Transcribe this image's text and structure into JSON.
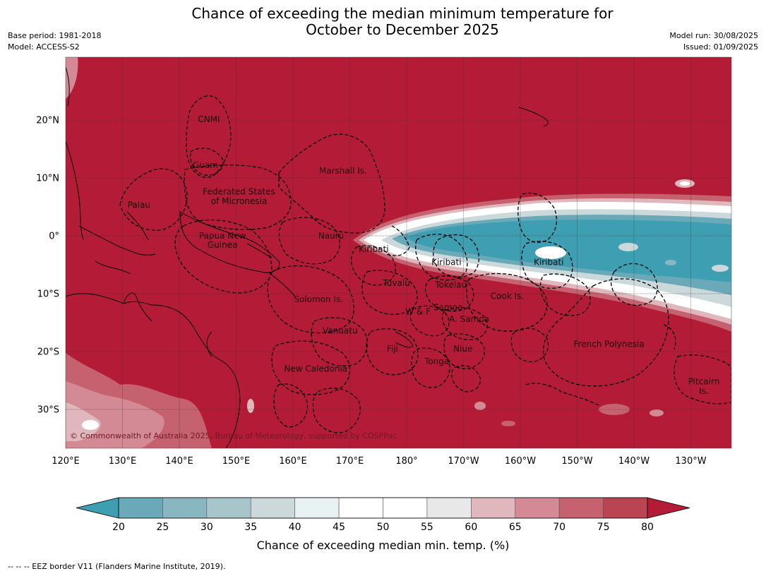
{
  "title_line1": "Chance of exceeding the median minimum temperature for",
  "title_line2": "October to December 2025",
  "meta_left": [
    "Base period: 1981-2018",
    "Model: ACCESS-S2"
  ],
  "meta_right": [
    "Model run: 30/08/2025",
    "Issued: 01/09/2025"
  ],
  "lon_ticks": [
    "120°E",
    "130°E",
    "140°E",
    "150°E",
    "160°E",
    "170°E",
    "180°",
    "170°W",
    "160°W",
    "150°W",
    "140°W",
    "130°W"
  ],
  "lat_ticks": [
    "20°N",
    "10°N",
    "0°",
    "10°S",
    "20°S",
    "30°S"
  ],
  "labels": [
    {
      "t": "CNMI",
      "lon": 145.2,
      "lat": 20.1
    },
    {
      "t": "Guam",
      "lon": 144.6,
      "lat": 12.2
    },
    {
      "t": "Marshall Is.",
      "lon": 168.8,
      "lat": 11.2
    },
    {
      "t": "Federated States",
      "lon": 150.5,
      "lat": 7.6
    },
    {
      "t": "of Micronesia",
      "lon": 150.5,
      "lat": 6.0
    },
    {
      "t": "Palau",
      "lon": 132.9,
      "lat": 5.3
    },
    {
      "t": "Papua New",
      "lon": 147.6,
      "lat": 0.0
    },
    {
      "t": "Guinea",
      "lon": 147.6,
      "lat": -1.6
    },
    {
      "t": "Nauru",
      "lon": 166.7,
      "lat": 0.0
    },
    {
      "t": "Kiribati",
      "lon": 174.2,
      "lat": -2.3
    },
    {
      "t": "Kiribati",
      "lon": 187.0,
      "lat": -4.6
    },
    {
      "t": "Kiribati",
      "lon": 205.0,
      "lat": -4.6
    },
    {
      "t": "Tuvalu",
      "lon": 178.2,
      "lat": -8.2
    },
    {
      "t": "Tokelau",
      "lon": 187.8,
      "lat": -8.5
    },
    {
      "t": "Solomon Is.",
      "lon": 164.5,
      "lat": -11.0
    },
    {
      "t": "Cook Is.",
      "lon": 197.7,
      "lat": -10.4
    },
    {
      "t": "Samoa",
      "lon": 187.3,
      "lat": -12.4
    },
    {
      "t": "W & F",
      "lon": 182.0,
      "lat": -13.1
    },
    {
      "t": "A. Samoa",
      "lon": 191.0,
      "lat": -14.4
    },
    {
      "t": "Vanuatu",
      "lon": 168.3,
      "lat": -16.4
    },
    {
      "t": "French Polynesia",
      "lon": 215.6,
      "lat": -18.7
    },
    {
      "t": "Fiji",
      "lon": 177.5,
      "lat": -19.5
    },
    {
      "t": "Niue",
      "lon": 189.9,
      "lat": -19.5
    },
    {
      "t": "Tonga",
      "lon": 185.3,
      "lat": -21.7
    },
    {
      "t": "New Caledonia",
      "lon": 164.0,
      "lat": -23.0
    },
    {
      "t": "Pitcairn",
      "lon": 232.3,
      "lat": -25.2
    },
    {
      "t": "Is.",
      "lon": 232.3,
      "lat": -26.8
    }
  ],
  "copyright": "© Commonwealth of Australia 2025, Bureau of Meteorology, supported by COSPPac",
  "colorbar": {
    "ticks": [
      "20",
      "25",
      "30",
      "35",
      "40",
      "45",
      "50",
      "55",
      "60",
      "65",
      "70",
      "75",
      "80"
    ],
    "colors": [
      "#6aa9b8",
      "#88b7c2",
      "#a8c5cb",
      "#ccd9db",
      "#eaf1f2",
      "#ffffff",
      "#ffffff",
      "#e8e8e8",
      "#dfb7bd",
      "#d48a95",
      "#c6626f",
      "#bb4452"
    ],
    "under_color": "#3f9fb2",
    "over_color": "#b31b37",
    "label": "Chance of exceeding median min. temp. (%)"
  },
  "footer": "--  --  -- EEZ border V11 (Flanders Marine Institute, 2019)."
}
